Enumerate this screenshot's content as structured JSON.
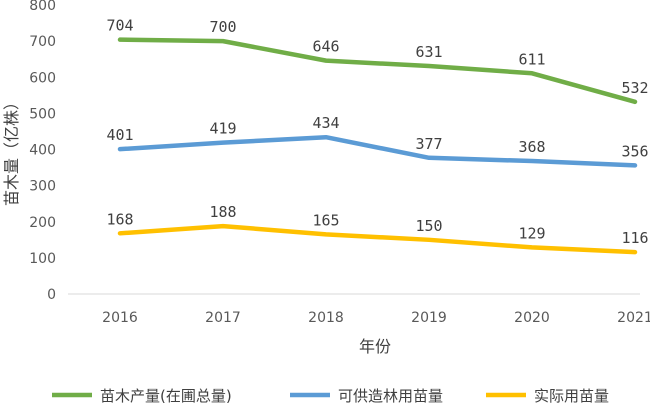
{
  "chart_data": {
    "type": "line",
    "xlabel": "年份",
    "ylabel": "苗木量（亿株）",
    "categories": [
      "2016",
      "2017",
      "2018",
      "2019",
      "2020",
      "2021"
    ],
    "ylim": [
      0,
      800
    ],
    "yticks": [
      0,
      100,
      200,
      300,
      400,
      500,
      600,
      700,
      800
    ],
    "grid": false,
    "legend_position": "bottom",
    "series": [
      {
        "name": "苗木产量(在圃总量)",
        "color": "#70ad47",
        "values": [
          704,
          700,
          646,
          631,
          611,
          532
        ]
      },
      {
        "name": "可供造林用苗量",
        "color": "#5b9bd5",
        "values": [
          401,
          419,
          434,
          377,
          368,
          356
        ]
      },
      {
        "name": "实际用苗量",
        "color": "#ffc000",
        "values": [
          168,
          188,
          165,
          150,
          129,
          116
        ]
      }
    ]
  }
}
